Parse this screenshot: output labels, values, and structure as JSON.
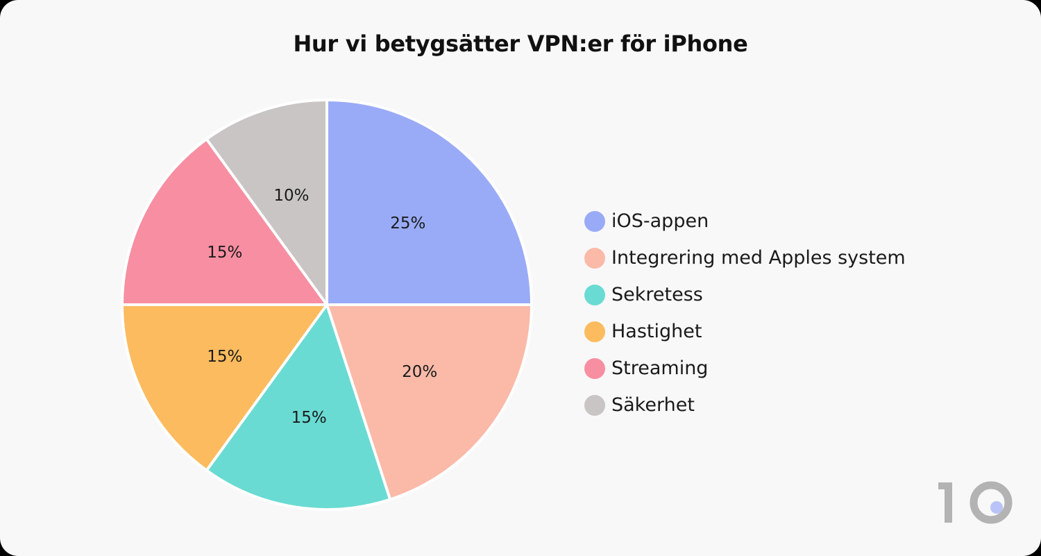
{
  "chart_data": {
    "type": "pie",
    "title": "Hur vi betygsätter VPN:er för iPhone",
    "slices": [
      {
        "label": "iOS-appen",
        "value": 25,
        "value_label": "25%",
        "color": "#99abf7"
      },
      {
        "label": "Integrering med Apples system",
        "value": 20,
        "value_label": "20%",
        "color": "#fbb9a8"
      },
      {
        "label": "Sekretess",
        "value": 15,
        "value_label": "15%",
        "color": "#69dbd3"
      },
      {
        "label": "Hastighet",
        "value": 15,
        "value_label": "15%",
        "color": "#fbbb5e"
      },
      {
        "label": "Streaming",
        "value": 15,
        "value_label": "15%",
        "color": "#f78ea1"
      },
      {
        "label": "Säkerhet",
        "value": 10,
        "value_label": "10%",
        "color": "#c8c5c4"
      }
    ],
    "start": "top",
    "direction": "clockwise",
    "legend_position": "right"
  },
  "logo": {
    "text": "10",
    "color": "#b3b3b3",
    "dot_color": "#b9c3f8"
  }
}
